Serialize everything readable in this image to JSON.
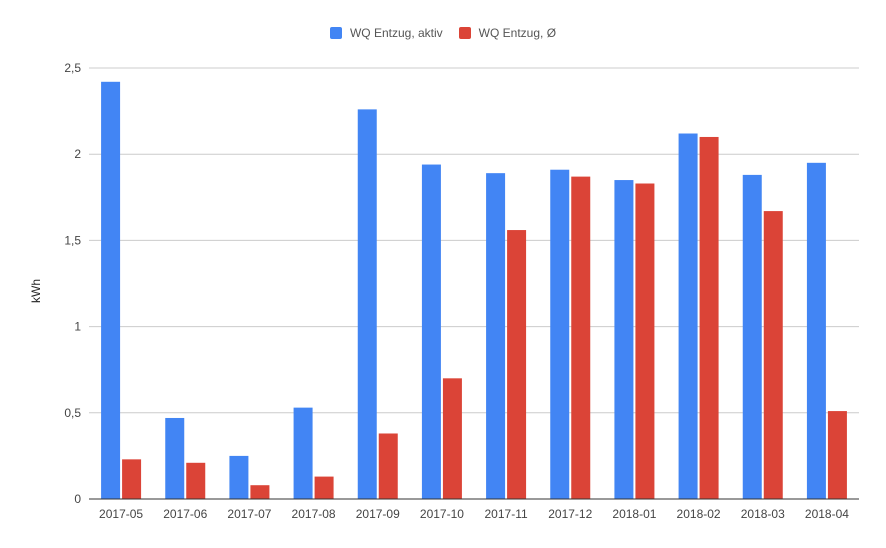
{
  "chart_data": {
    "type": "bar",
    "categories": [
      "2017-05",
      "2017-06",
      "2017-07",
      "2017-08",
      "2017-09",
      "2017-10",
      "2017-11",
      "2017-12",
      "2018-01",
      "2018-02",
      "2018-03",
      "2018-04"
    ],
    "series": [
      {
        "name": "WQ Entzug, aktiv",
        "color": "#4285f4",
        "values": [
          2.42,
          0.47,
          0.25,
          0.53,
          2.26,
          1.94,
          1.89,
          1.91,
          1.85,
          2.12,
          1.88,
          1.95
        ]
      },
      {
        "name": "WQ Entzug, Ø",
        "color": "#db4437",
        "values": [
          0.23,
          0.21,
          0.08,
          0.13,
          0.38,
          0.7,
          1.56,
          1.87,
          1.83,
          2.1,
          1.67,
          0.51
        ]
      }
    ],
    "ylabel": "kWh",
    "ylim": [
      0,
      2.5
    ],
    "yticks": [
      0,
      0.5,
      1,
      1.5,
      2,
      2.5
    ],
    "ytick_labels": [
      "0",
      "0,5",
      "1",
      "1,5",
      "2",
      "2,5"
    ],
    "grid": true,
    "legend_position": "top-center"
  }
}
